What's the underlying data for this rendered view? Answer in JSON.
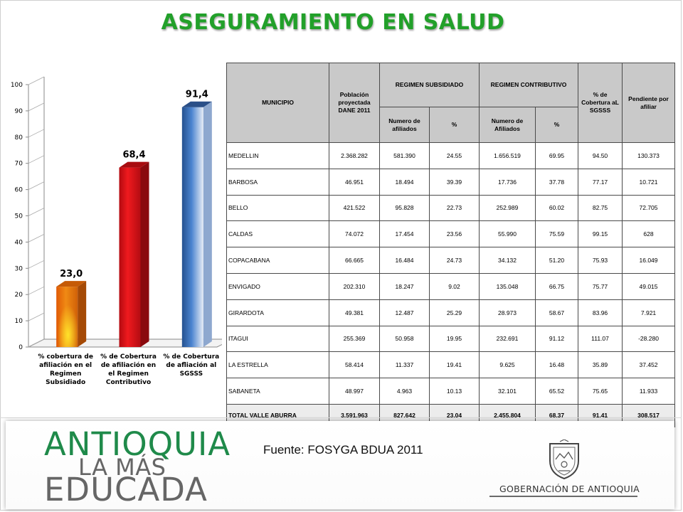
{
  "title": "ASEGURAMIENTO EN SALUD",
  "chart_data": {
    "type": "bar",
    "categories": [
      "% cobertura de afiliación en el Regimen Subsidiado",
      "% de Cobertura de afiliación en el Regimen Contributivo",
      "% de Cobertura de afliación al SGSSS"
    ],
    "category_lines": [
      [
        "% cobertura de",
        "afiliación en el",
        "Regimen",
        "Subsidiado"
      ],
      [
        "% de Cobertura",
        "de afiliación en",
        "el Regimen",
        "Contributivo"
      ],
      [
        "% de Cobertura",
        "de afliación al",
        "SGSSS"
      ]
    ],
    "values": [
      23.0,
      68.4,
      91.4
    ],
    "value_labels": [
      "23,0",
      "68,4",
      "91,4"
    ],
    "bar_colors": [
      "#e97910",
      "#d9161b",
      "#3569b5"
    ],
    "ylim": [
      0,
      100
    ],
    "yticks": [
      0,
      10,
      20,
      30,
      40,
      50,
      60,
      70,
      80,
      90,
      100
    ],
    "grid": false
  },
  "table": {
    "headers": {
      "municipio": "MUNICIPIO",
      "poblacion": "Población proyectada DANE 2011",
      "subsidiado": "REGIMEN SUBSIDIADO",
      "contributivo": "REGIMEN CONTRIBUTIVO",
      "cobertura": "% de Cobertura aL SGSSS",
      "pendiente": "Pendiente por afiliar",
      "numero_afiliados_sub": "Numero de afiliados",
      "pct_sub": "%",
      "numero_afiliados_con": "Numero de Afiliados",
      "pct_con": "%"
    },
    "rows": [
      [
        "MEDELLIN",
        "2.368.282",
        "581.390",
        "24.55",
        "1.656.519",
        "69.95",
        "94.50",
        "130.373"
      ],
      [
        "BARBOSA",
        "46.951",
        "18.494",
        "39.39",
        "17.736",
        "37.78",
        "77.17",
        "10.721"
      ],
      [
        "BELLO",
        "421.522",
        "95.828",
        "22.73",
        "252.989",
        "60.02",
        "82.75",
        "72.705"
      ],
      [
        "CALDAS",
        "74.072",
        "17.454",
        "23.56",
        "55.990",
        "75.59",
        "99.15",
        "628"
      ],
      [
        "COPACABANA",
        "66.665",
        "16.484",
        "24.73",
        "34.132",
        "51.20",
        "75.93",
        "16.049"
      ],
      [
        "ENVIGADO",
        "202.310",
        "18.247",
        "9.02",
        "135.048",
        "66.75",
        "75.77",
        "49.015"
      ],
      [
        "GIRARDOTA",
        "49.381",
        "12.487",
        "25.29",
        "28.973",
        "58.67",
        "83.96",
        "7.921"
      ],
      [
        "ITAGUI",
        "255.369",
        "50.958",
        "19.95",
        "232.691",
        "91.12",
        "111.07",
        "-28.280"
      ],
      [
        "LA ESTRELLA",
        "58.414",
        "11.337",
        "19.41",
        "9.625",
        "16.48",
        "35.89",
        "37.452"
      ],
      [
        "SABANETA",
        "48.997",
        "4.963",
        "10.13",
        "32.101",
        "65.52",
        "75.65",
        "11.933"
      ]
    ],
    "total": [
      "TOTAL  VALLE ABURRA",
      "3.591.963",
      "827.642",
      "23.04",
      "2.455.804",
      "68.37",
      "91.41",
      "308.517"
    ]
  },
  "footer": {
    "brand_line1": "ANTIOQUIA",
    "brand_line2": "LA MÁS",
    "brand_line3": "EDUCADA",
    "source": "Fuente: FOSYGA BDUA 2011",
    "government": "GOBERNACIÓN DE ANTIOQUIA",
    "coat_of_arms_icon": "coat-of-arms-icon"
  },
  "colors": {
    "title": "#22a02a",
    "brand_green": "#1f8a4a",
    "table_header": "#c9c9c9"
  }
}
